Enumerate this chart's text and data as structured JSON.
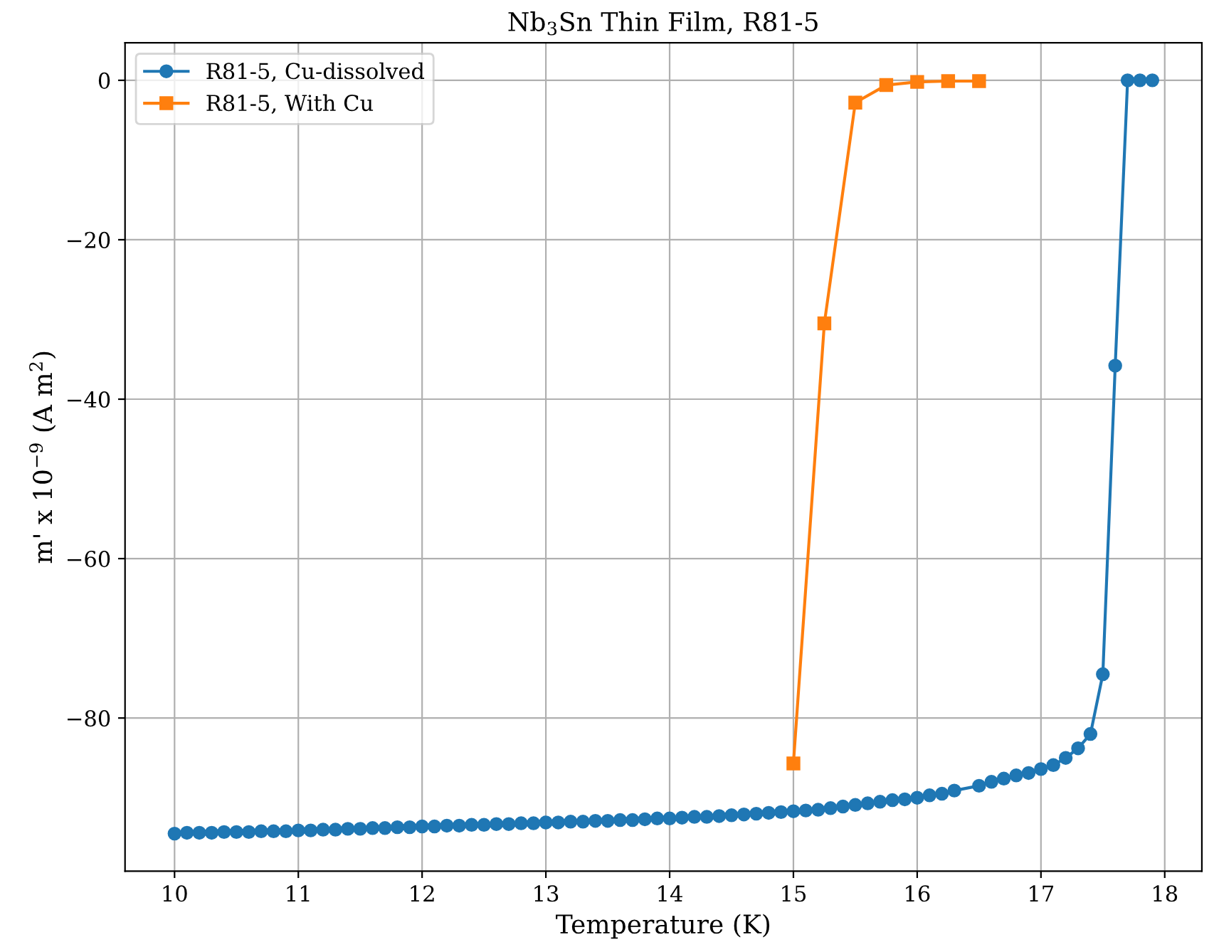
{
  "chart_data": {
    "type": "line",
    "title": "Nb$_{3}$Sn Thin Film, R81-5",
    "xlabel": "Temperature (K)",
    "ylabel": "m' x 10$^{−9}$ (A m$^{2}$)",
    "series": [
      {
        "name": "R81-5, Cu-dissolved",
        "color": "#1f77b4",
        "marker": "circle",
        "x": [
          10.0,
          10.1,
          10.2,
          10.3,
          10.4,
          10.5,
          10.6,
          10.7,
          10.8,
          10.9,
          11.0,
          11.1,
          11.2,
          11.3,
          11.4,
          11.5,
          11.6,
          11.7,
          11.8,
          11.9,
          12.0,
          12.1,
          12.2,
          12.3,
          12.4,
          12.5,
          12.6,
          12.7,
          12.8,
          12.9,
          13.0,
          13.1,
          13.2,
          13.3,
          13.4,
          13.5,
          13.6,
          13.7,
          13.8,
          13.9,
          14.0,
          14.1,
          14.2,
          14.3,
          14.4,
          14.5,
          14.6,
          14.7,
          14.8,
          14.9,
          15.0,
          15.1,
          15.2,
          15.3,
          15.4,
          15.5,
          15.6,
          15.7,
          15.8,
          15.9,
          16.0,
          16.1,
          16.2,
          16.3,
          16.5,
          16.6,
          16.7,
          16.8,
          16.9,
          17.0,
          17.1,
          17.2,
          17.3,
          17.4,
          17.5,
          17.6,
          17.7,
          17.8,
          17.9
        ],
        "values": [
          -94.5,
          -94.4,
          -94.4,
          -94.4,
          -94.3,
          -94.3,
          -94.3,
          -94.2,
          -94.2,
          -94.2,
          -94.1,
          -94.1,
          -94.0,
          -94.0,
          -93.9,
          -93.9,
          -93.8,
          -93.8,
          -93.7,
          -93.7,
          -93.6,
          -93.6,
          -93.5,
          -93.5,
          -93.4,
          -93.4,
          -93.3,
          -93.3,
          -93.2,
          -93.2,
          -93.1,
          -93.1,
          -93.0,
          -93.0,
          -92.9,
          -92.9,
          -92.8,
          -92.8,
          -92.7,
          -92.6,
          -92.6,
          -92.5,
          -92.4,
          -92.4,
          -92.3,
          -92.2,
          -92.1,
          -92.0,
          -91.9,
          -91.8,
          -91.7,
          -91.6,
          -91.5,
          -91.3,
          -91.1,
          -90.9,
          -90.7,
          -90.5,
          -90.3,
          -90.2,
          -90.0,
          -89.7,
          -89.5,
          -89.1,
          -88.5,
          -88.0,
          -87.6,
          -87.2,
          -86.9,
          -86.4,
          -85.9,
          -85.0,
          -83.8,
          -82.0,
          -74.5,
          -35.8,
          0,
          0,
          0
        ]
      },
      {
        "name": "R81-5, With Cu",
        "color": "#ff7f0e",
        "marker": "square",
        "x": [
          15.0,
          15.25,
          15.5,
          15.75,
          16.0,
          16.25,
          16.5
        ],
        "values": [
          -85.7,
          -30.5,
          -2.8,
          -0.6,
          -0.2,
          -0.1,
          -0.1
        ]
      }
    ],
    "xlim": [
      9.6,
      18.3
    ],
    "ylim": [
      -99.2,
      4.7
    ],
    "xticks": [
      10,
      11,
      12,
      13,
      14,
      15,
      16,
      17,
      18
    ],
    "yticks": [
      {
        "value": -80,
        "label": "−80"
      },
      {
        "value": -60,
        "label": "−60"
      },
      {
        "value": -40,
        "label": "−40"
      },
      {
        "value": -20,
        "label": "−20"
      },
      0
    ],
    "grid": true,
    "legend": "top left",
    "line_style": "solid"
  }
}
